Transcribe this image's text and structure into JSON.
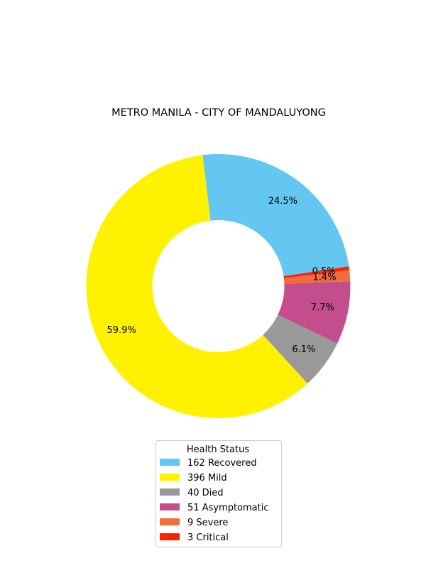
{
  "chart_data": {
    "type": "pie",
    "style": "donut",
    "title": "METRO MANILA - CITY OF MANDALUYONG",
    "legend": {
      "title": "Health Status",
      "placement": "bottom-center"
    },
    "slices": [
      {
        "label": "Recovered",
        "count": 162,
        "legend_label": "162  Recovered",
        "percent_label": "24.5%",
        "color": "#63C7F2"
      },
      {
        "label": "Mild",
        "count": 396,
        "legend_label": "396  Mild",
        "percent_label": "59.9%",
        "color": "#FFF200"
      },
      {
        "label": "Died",
        "count": 40,
        "legend_label": "40  Died",
        "percent_label": "6.1%",
        "color": "#999999"
      },
      {
        "label": "Asymptomatic",
        "count": 51,
        "legend_label": "51  Asymptomatic",
        "percent_label": "7.7%",
        "color": "#C44D8E"
      },
      {
        "label": "Severe",
        "count": 9,
        "legend_label": "9  Severe",
        "percent_label": "1.4%",
        "color": "#F26D3D"
      },
      {
        "label": "Critical",
        "count": 3,
        "legend_label": "3  Critical",
        "percent_label": "0.5%",
        "color": "#FF2200"
      }
    ]
  }
}
